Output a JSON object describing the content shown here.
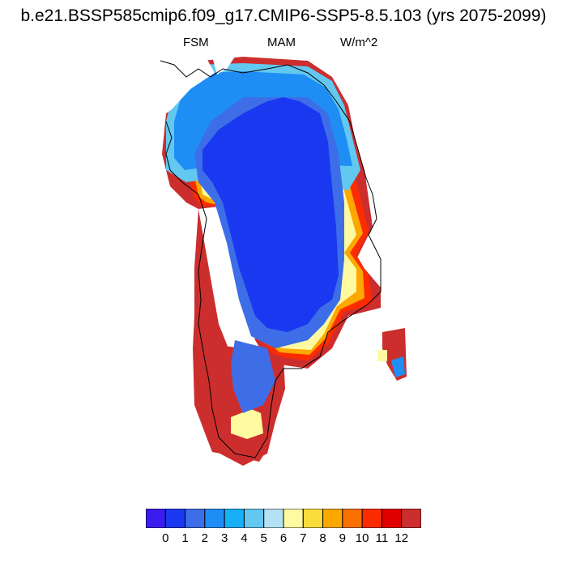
{
  "title": "b.e21.BSSP585cmip6.f09_g17.CMIP6-SSP5-8.5.103 (yrs 2075-2099)",
  "header": {
    "left": "FSM",
    "center": "MAM",
    "right": "W/m^2"
  },
  "colorbar": {
    "colors": [
      "#3b1cf0",
      "#1a38f0",
      "#3d6ee8",
      "#1e8ef5",
      "#16b0f7",
      "#62c8f0",
      "#b4e2f4",
      "#fffaa0",
      "#fcdc3c",
      "#fca800",
      "#fc7000",
      "#fc2c00",
      "#e00000",
      "#cc2e2e"
    ],
    "tick_labels": [
      "0",
      "1",
      "2",
      "3",
      "4",
      "5",
      "6",
      "7",
      "8",
      "9",
      "10",
      "11",
      "12"
    ]
  },
  "chart_data": {
    "type": "heatmap",
    "title": "b.e21.BSSP585cmip6.f09_g17.CMIP6-SSP5-8.5.103 (yrs 2075-2099)",
    "variable": "FSM",
    "season": "MAM",
    "units": "W/m^2",
    "levels": [
      0,
      1,
      2,
      3,
      4,
      5,
      6,
      7,
      8,
      9,
      10,
      11,
      12
    ],
    "region": "Greenland",
    "summary_by_zone": {
      "interior_ice_sheet": 1,
      "northern_margin": 3,
      "west_margin": 10,
      "southwest_margin": 12,
      "east_margin": 8,
      "southern_tip": 7
    }
  }
}
